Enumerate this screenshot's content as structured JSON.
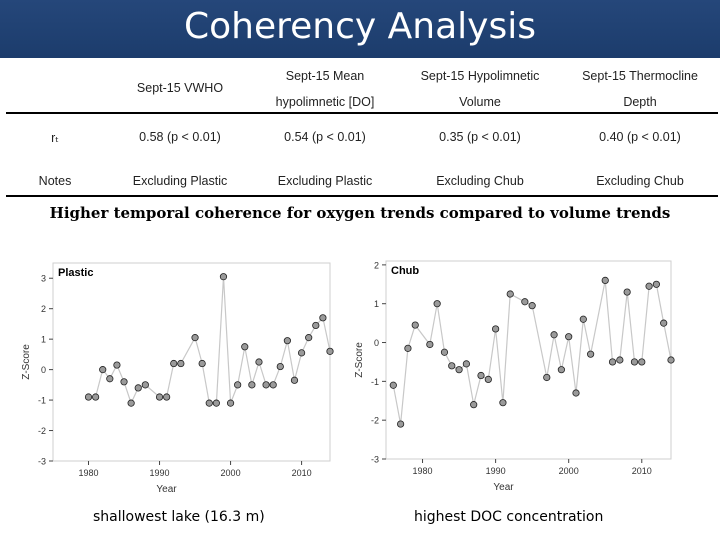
{
  "title": "Coherency Analysis",
  "table": {
    "headers": [
      {
        "lines": [
          "Sept-15 VWHO"
        ]
      },
      {
        "lines": [
          "Sept-15 Mean",
          "hypolimnetic [DO]"
        ]
      },
      {
        "lines": [
          "Sept-15 Hypolimnetic",
          "Volume"
        ]
      },
      {
        "lines": [
          "Sept-15 Thermocline",
          "Depth"
        ]
      }
    ],
    "rows": [
      {
        "label": "rₜ",
        "cells": [
          "0.58 (p < 0.01)",
          "0.54 (p < 0.01)",
          "0.35 (p < 0.01)",
          "0.40 (p < 0.01)"
        ]
      },
      {
        "label": "Notes",
        "cells": [
          "Excluding Plastic",
          "Excluding Plastic",
          "Excluding Chub",
          "Excluding Chub"
        ]
      }
    ]
  },
  "subtitle": "Higher temporal coherence for oxygen trends compared to volume trends",
  "captions": [
    "shallowest lake (16.3 m)",
    "highest DOC  concentration"
  ],
  "chart_data": [
    {
      "type": "line",
      "title": "Plastic",
      "xlabel": "Year",
      "ylabel": "Z-Score",
      "xlim": [
        1975,
        2014
      ],
      "ylim": [
        -3,
        3.5
      ],
      "xticks": [
        1980,
        1990,
        2000,
        2010
      ],
      "yticks": [
        -3,
        -2,
        -1,
        0,
        1,
        2,
        3
      ],
      "grid": false,
      "series": [
        {
          "x": [
            1980,
            1981,
            1982,
            1983,
            1984,
            1985,
            1986,
            1987,
            1988,
            1990,
            1991,
            1992,
            1993,
            1995,
            1996,
            1997,
            1998,
            1999,
            2000,
            2001,
            2002,
            2003,
            2004,
            2005,
            2006,
            2007,
            2008,
            2009,
            2010,
            2011,
            2012,
            2013,
            2014
          ],
          "y": [
            -0.9,
            -0.9,
            0.0,
            -0.3,
            0.15,
            -0.4,
            -1.1,
            -0.6,
            -0.5,
            -0.9,
            -0.9,
            0.2,
            0.2,
            1.05,
            0.2,
            -1.1,
            -1.1,
            3.05,
            -1.1,
            -0.5,
            0.75,
            -0.5,
            0.25,
            -0.5,
            -0.5,
            0.1,
            0.95,
            -0.35,
            0.55,
            1.05,
            1.45,
            1.7,
            0.6
          ]
        }
      ]
    },
    {
      "type": "line",
      "title": "Chub",
      "xlabel": "Year",
      "ylabel": "Z-Score",
      "xlim": [
        1975,
        2014
      ],
      "ylim": [
        -3,
        2.1
      ],
      "xticks": [
        1980,
        1990,
        2000,
        2010
      ],
      "yticks": [
        -3,
        -2,
        -1,
        0,
        1,
        2
      ],
      "grid": false,
      "series": [
        {
          "x": [
            1976,
            1977,
            1978,
            1979,
            1981,
            1982,
            1983,
            1984,
            1985,
            1986,
            1987,
            1988,
            1989,
            1990,
            1991,
            1992,
            1994,
            1995,
            1997,
            1998,
            1999,
            2000,
            2001,
            2002,
            2003,
            2005,
            2006,
            2007,
            2008,
            2009,
            2010,
            2011,
            2012,
            2013,
            2014
          ],
          "y": [
            -1.1,
            -2.1,
            -0.15,
            0.45,
            -0.05,
            1.0,
            -0.25,
            -0.6,
            -0.7,
            -0.55,
            -1.6,
            -0.85,
            -0.95,
            0.35,
            -1.55,
            1.25,
            1.05,
            0.95,
            -0.9,
            0.2,
            -0.7,
            0.15,
            -1.3,
            0.6,
            -0.3,
            1.6,
            -0.5,
            -0.45,
            1.3,
            -0.5,
            -0.5,
            1.45,
            1.5,
            0.5,
            -0.45
          ]
        }
      ]
    }
  ]
}
